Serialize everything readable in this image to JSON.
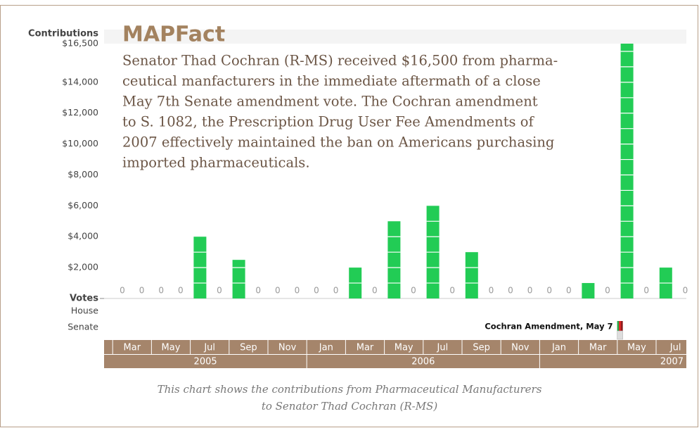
{
  "chart_data": {
    "type": "bar",
    "y_axis_label": "Contributions",
    "votes_label": "Votes",
    "vote_rows": [
      "House",
      "Senate"
    ],
    "categories": [
      "Mar",
      null,
      "May",
      null,
      "Jul",
      null,
      "Sep",
      null,
      "Nov",
      null,
      "Jan",
      null,
      "Mar",
      null,
      "May",
      null,
      "Jul",
      null,
      "Sep",
      null,
      "Nov",
      null,
      "Jan",
      null,
      "Mar",
      null,
      "May",
      null,
      "Jul",
      null
    ],
    "groups": [
      {
        "name": "2005",
        "count": 10
      },
      {
        "name": "2006",
        "count": 12
      },
      {
        "name": "2007",
        "count": 8
      }
    ],
    "values": [
      0,
      0,
      0,
      0,
      4000,
      0,
      2500,
      0,
      0,
      0,
      0,
      0,
      2000,
      0,
      5000,
      0,
      6000,
      0,
      3000,
      0,
      0,
      0,
      0,
      0,
      1000,
      0,
      16500,
      0,
      2000,
      0
    ],
    "color": "#22cc55",
    "ylim": [
      0,
      16500
    ],
    "yticks": [
      {
        "value": 2000,
        "label": "$2,000"
      },
      {
        "value": 4000,
        "label": "$4,000"
      },
      {
        "value": 6000,
        "label": "$6,000"
      },
      {
        "value": 8000,
        "label": "$8,000"
      },
      {
        "value": 10000,
        "label": "$10,000"
      },
      {
        "value": 12000,
        "label": "$12,000"
      },
      {
        "value": 14000,
        "label": "$14,000"
      },
      {
        "value": 16500,
        "label": "$16,500"
      }
    ],
    "vote_annotation": {
      "label": "Cochran Amendment, May 7",
      "row": "Senate"
    },
    "fact": {
      "title": "MAPFact",
      "lines": [
        "Senator Thad Cochran (R-MS) received $16,500 from pharma-",
        "ceutical manfacturers in the immediate aftermath of a close",
        "May 7th Senate amendment vote. The Cochran amendment",
        "to S. 1082, the Prescription Drug User Fee Amendments of",
        "2007 effectively maintained the ban on Americans purchasing",
        "imported pharmaceuticals."
      ]
    },
    "caption": [
      "This chart shows the contributions from Pharmaceutical Manufacturers",
      "to Senator Thad Cochran (R-MS)"
    ]
  }
}
